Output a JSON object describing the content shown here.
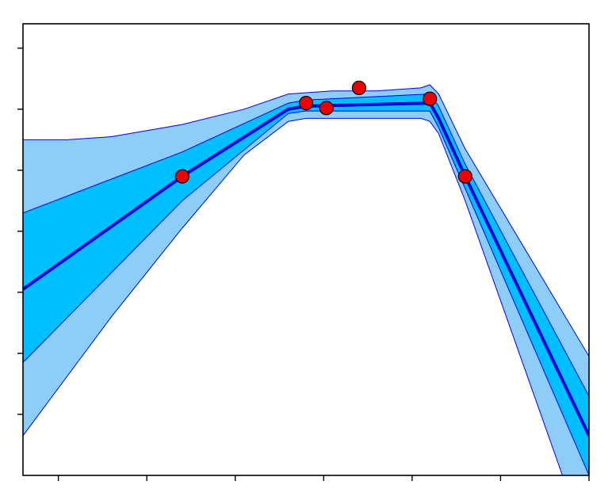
{
  "chart_data": {
    "type": "area",
    "title": "",
    "xlabel": "",
    "ylabel": "",
    "xlim": [
      0,
      6.4
    ],
    "ylim": [
      0,
      7.4
    ],
    "grid": false,
    "legend": "none",
    "x_ticks": [
      0.4,
      1.4,
      2.4,
      3.4,
      4.4,
      5.4,
      6.4
    ],
    "y_ticks": [
      1,
      2,
      3,
      4,
      5,
      6,
      7
    ],
    "x_tick_labels": [],
    "y_tick_labels": [],
    "colors": {
      "outer_band": "#8ecdf8",
      "inner_band": "#00bfff",
      "band_edge": "#0000ee",
      "mean": "#0000dd",
      "points": "#ee0000"
    },
    "series": [
      {
        "kind": "mean",
        "x": [
          0,
          1.8,
          3.0,
          3.2,
          4.6,
          4.7,
          5.0,
          6.4
        ],
        "values": [
          3.05,
          4.9,
          6.0,
          6.05,
          6.1,
          5.85,
          4.9,
          0.65
        ]
      },
      {
        "kind": "inner-band-upper",
        "x": [
          0,
          1.8,
          3.0,
          3.2,
          4.6,
          4.7,
          5.0,
          6.4
        ],
        "values": [
          4.3,
          5.3,
          6.1,
          6.15,
          6.25,
          6.05,
          5.1,
          1.3
        ]
      },
      {
        "kind": "inner-band-lower",
        "x": [
          0,
          1.8,
          3.0,
          3.2,
          4.6,
          4.7,
          5.0,
          6.4
        ],
        "values": [
          1.85,
          4.5,
          5.93,
          5.97,
          5.97,
          5.7,
          4.7,
          0
        ]
      },
      {
        "kind": "outer-band-upper",
        "x": [
          0,
          0.5,
          1.0,
          1.8,
          2.5,
          3.0,
          3.5,
          4.0,
          4.5,
          4.6,
          4.7,
          5.0,
          6.4
        ],
        "values": [
          5.5,
          5.5,
          5.55,
          5.75,
          6.0,
          6.25,
          6.3,
          6.3,
          6.35,
          6.4,
          6.25,
          5.35,
          1.95
        ]
      },
      {
        "kind": "outer-band-lower",
        "x": [
          0,
          1.0,
          1.8,
          2.5,
          3.0,
          3.2,
          4.5,
          4.6,
          4.7,
          5.0,
          6.1
        ],
        "values": [
          0.65,
          2.6,
          4.05,
          5.25,
          5.8,
          5.85,
          5.85,
          5.8,
          5.6,
          4.5,
          0
        ]
      }
    ],
    "points": {
      "x": [
        1.8,
        3.2,
        3.43,
        3.8,
        4.6,
        5.0
      ],
      "y": [
        4.9,
        6.1,
        6.02,
        6.35,
        6.17,
        4.9
      ]
    }
  }
}
